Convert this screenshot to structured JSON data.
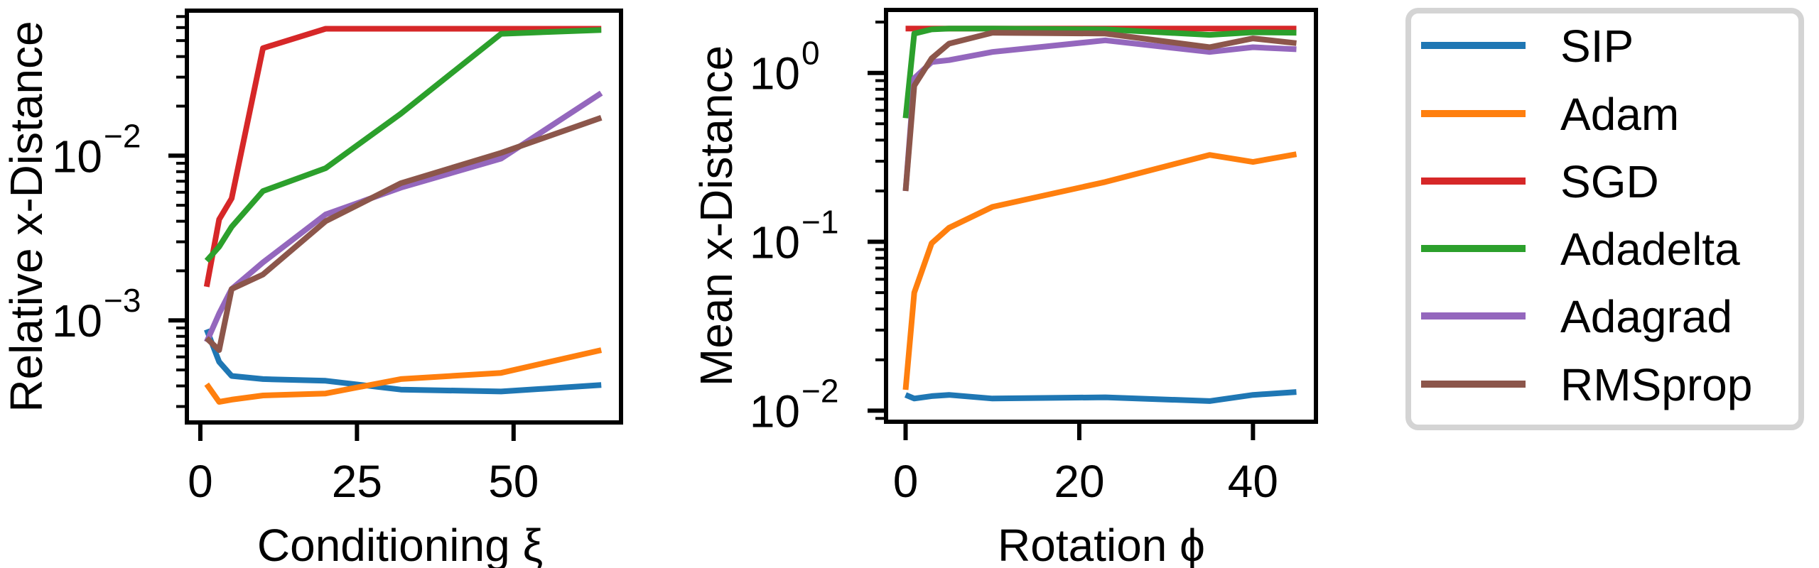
{
  "legend": {
    "placement": "right",
    "entries": [
      {
        "name": "SIP",
        "color": "#1f77b4"
      },
      {
        "name": "Adam",
        "color": "#ff7f0e"
      },
      {
        "name": "SGD",
        "color": "#d62728"
      },
      {
        "name": "Adadelta",
        "color": "#2ca02c"
      },
      {
        "name": "Adagrad",
        "color": "#9467bd"
      },
      {
        "name": "RMSprop",
        "color": "#8c564b"
      }
    ]
  },
  "chart_data": [
    {
      "type": "line",
      "xlabel": "Conditioning ξ",
      "ylabel": "Relative x-Distance",
      "yscale": "log",
      "xlim": [
        -2.15,
        67.15
      ],
      "ylim": [
        0.00024,
        0.076
      ],
      "xticks": [
        0,
        25,
        50
      ],
      "yticks": [
        {
          "value": 0.001,
          "base": "10",
          "exp": "−3"
        },
        {
          "value": 0.01,
          "base": "10",
          "exp": "−2"
        }
      ],
      "grid": false,
      "x": [
        1,
        3,
        5,
        10,
        20,
        32,
        48,
        64
      ],
      "series": [
        {
          "name": "SIP",
          "values": [
            0.00088,
            0.00056,
            0.00046,
            0.00044,
            0.00043,
            0.00038,
            0.00037,
            0.000405
          ]
        },
        {
          "name": "Adam",
          "values": [
            0.00041,
            0.00032,
            0.00033,
            0.00035,
            0.00036,
            0.00044,
            0.00048,
            0.00066
          ]
        },
        {
          "name": "SGD",
          "values": [
            0.0016,
            0.0041,
            0.0055,
            0.045,
            0.059,
            0.059,
            0.059,
            0.059
          ]
        },
        {
          "name": "Adadelta",
          "values": [
            0.0023,
            0.0028,
            0.0037,
            0.0061,
            0.0084,
            0.018,
            0.055,
            0.058
          ]
        },
        {
          "name": "Adagrad",
          "values": [
            0.00074,
            0.0011,
            0.00155,
            0.00225,
            0.0044,
            0.0064,
            0.0096,
            0.024
          ]
        },
        {
          "name": "RMSprop",
          "values": [
            0.00078,
            0.00066,
            0.00155,
            0.0019,
            0.004,
            0.0068,
            0.0104,
            0.017
          ]
        }
      ]
    },
    {
      "type": "line",
      "xlabel": "Rotation ϕ",
      "ylabel": "Mean x-Distance",
      "yscale": "log",
      "xlim": [
        -2.25,
        47.25
      ],
      "ylim": [
        0.0086,
        2.36
      ],
      "xticks": [
        0,
        20,
        40
      ],
      "yticks": [
        {
          "value": 0.01,
          "base": "10",
          "exp": "−2"
        },
        {
          "value": 0.1,
          "base": "10",
          "exp": "−1"
        },
        {
          "value": 1,
          "base": "10",
          "exp": "0"
        }
      ],
      "grid": false,
      "x": [
        0,
        1,
        3,
        5,
        10,
        23,
        35,
        40,
        45
      ],
      "series": [
        {
          "name": "SIP",
          "values": [
            0.0124,
            0.0118,
            0.0122,
            0.0124,
            0.0118,
            0.012,
            0.0114,
            0.0124,
            0.0129
          ]
        },
        {
          "name": "Adam",
          "values": [
            0.0133,
            0.05,
            0.098,
            0.121,
            0.161,
            0.226,
            0.327,
            0.297,
            0.33
          ]
        },
        {
          "name": "SGD",
          "values": [
            1.83,
            1.83,
            1.83,
            1.83,
            1.83,
            1.83,
            1.83,
            1.83,
            1.83
          ]
        },
        {
          "name": "Adadelta",
          "values": [
            0.54,
            1.71,
            1.81,
            1.83,
            1.83,
            1.81,
            1.68,
            1.74,
            1.73
          ]
        },
        {
          "name": "Adagrad",
          "values": [
            0.2,
            0.93,
            1.16,
            1.19,
            1.33,
            1.56,
            1.33,
            1.42,
            1.38
          ]
        },
        {
          "name": "RMSprop",
          "values": [
            0.2,
            0.84,
            1.22,
            1.49,
            1.73,
            1.71,
            1.42,
            1.6,
            1.5
          ]
        }
      ]
    }
  ]
}
